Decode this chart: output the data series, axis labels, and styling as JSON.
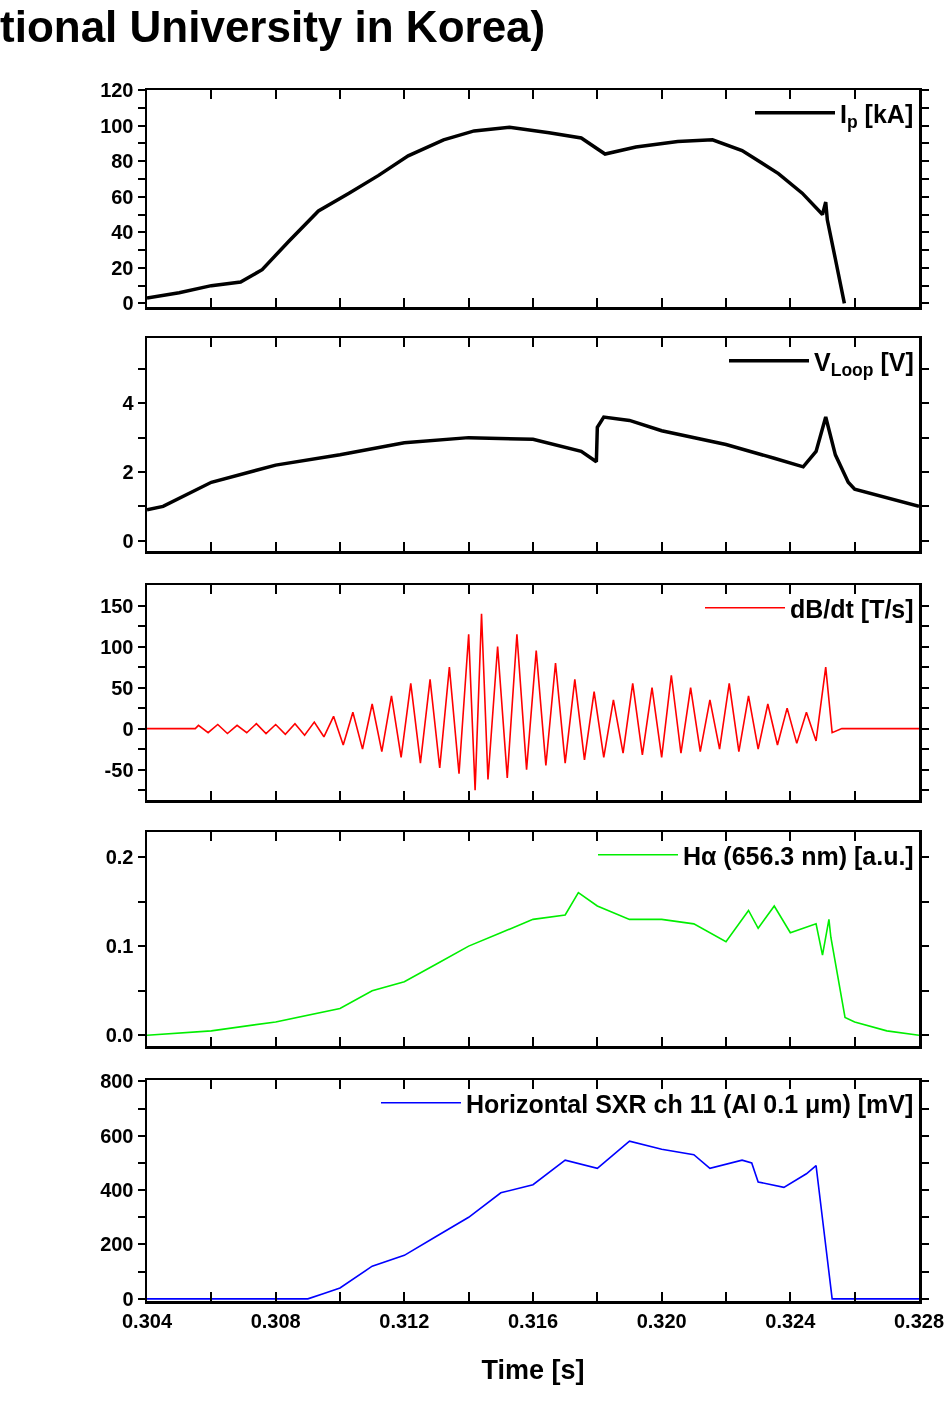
{
  "chart_data": [
    {
      "type": "line",
      "title": "tional University in Korea)",
      "xlim": [
        0.304,
        0.328
      ],
      "xticks": [
        0.304,
        {
          "value": 0.306,
          "label": null
        },
        0.308,
        {
          "value": 0.31,
          "label": null
        },
        0.312,
        {
          "value": 0.314,
          "label": null
        },
        0.316,
        {
          "value": 0.318,
          "label": null
        },
        0.32,
        {
          "value": 0.322,
          "label": null
        },
        0.324,
        {
          "value": 0.326,
          "label": null
        },
        0.328
      ],
      "ylim": [
        -2,
        120
      ],
      "yticks": [
        0,
        {
          "value": 10,
          "label": null
        },
        20,
        {
          "value": 30,
          "label": null
        },
        40,
        {
          "value": 50,
          "label": null
        },
        60,
        {
          "value": 70,
          "label": null
        },
        80,
        {
          "value": 90,
          "label": null
        },
        100,
        {
          "value": 110,
          "label": null
        },
        120
      ],
      "tick_labels": "y",
      "grid": false,
      "legend": "top right",
      "marker": "none",
      "line_style": "solid",
      "series": [
        {
          "name": "I$_{p}$ [kA]",
          "color": "#000000",
          "x": [
            0.304,
            0.305,
            0.306,
            0.30691,
            0.30758,
            0.30841,
            0.30933,
            0.31028,
            0.3112,
            0.31212,
            0.31322,
            0.31417,
            0.31527,
            0.3165,
            0.3175,
            0.31824,
            0.3192,
            0.3205,
            0.32158,
            0.3225,
            0.32363,
            0.32437,
            0.325,
            0.3251,
            0.32515,
            0.3254,
            0.32568
          ],
          "values": [
            3,
            6,
            10,
            12,
            19,
            35,
            52,
            62,
            72,
            83,
            92,
            97,
            99,
            96,
            93,
            84,
            88,
            91,
            92,
            86,
            73,
            62,
            50,
            57,
            47,
            25,
            0
          ]
        }
      ]
    },
    {
      "type": "line",
      "xlim": [
        0.304,
        0.328
      ],
      "xticks": [
        0.304,
        {
          "value": 0.306,
          "label": null
        },
        0.308,
        {
          "value": 0.31,
          "label": null
        },
        0.312,
        {
          "value": 0.314,
          "label": null
        },
        0.316,
        {
          "value": 0.318,
          "label": null
        },
        0.32,
        {
          "value": 0.322,
          "label": null
        },
        0.324,
        {
          "value": 0.326,
          "label": null
        },
        0.328
      ],
      "ylim": [
        -0.3,
        5.9
      ],
      "yticks": [
        0,
        {
          "value": 1,
          "label": null
        },
        2,
        {
          "value": 3,
          "label": null
        },
        4,
        {
          "value": 5,
          "label": null
        }
      ],
      "tick_labels": "y",
      "grid": false,
      "legend": "top right",
      "marker": "none",
      "line_style": "solid",
      "series": [
        {
          "name": "V$_{Loop}$ [V]",
          "color": "#000000",
          "x": [
            0.304,
            0.3045,
            0.306,
            0.308,
            0.31,
            0.312,
            0.314,
            0.316,
            0.3175,
            0.31797,
            0.318,
            0.3182,
            0.319,
            0.32,
            0.322,
            0.3235,
            0.3244,
            0.3248,
            0.3251,
            0.3254,
            0.3258,
            0.326,
            0.328
          ],
          "values": [
            0.9,
            1.0,
            1.7,
            2.2,
            2.5,
            2.85,
            3.0,
            2.95,
            2.6,
            2.3,
            3.3,
            3.6,
            3.5,
            3.2,
            2.8,
            2.4,
            2.15,
            2.6,
            3.6,
            2.5,
            1.7,
            1.5,
            1.0
          ]
        }
      ]
    },
    {
      "type": "line",
      "xlim": [
        0.304,
        0.328
      ],
      "xticks": [
        0.304,
        {
          "value": 0.306,
          "label": null
        },
        0.308,
        {
          "value": 0.31,
          "label": null
        },
        0.312,
        {
          "value": 0.314,
          "label": null
        },
        0.316,
        {
          "value": 0.318,
          "label": null
        },
        0.32,
        {
          "value": 0.322,
          "label": null
        },
        0.324,
        {
          "value": 0.326,
          "label": null
        },
        0.328
      ],
      "ylim": [
        -87,
        175
      ],
      "yticks": [
        {
          "value": -75,
          "label": null
        },
        -50,
        {
          "value": -25,
          "label": null
        },
        0,
        {
          "value": 25,
          "label": null
        },
        50,
        {
          "value": 75,
          "label": null
        },
        100,
        {
          "value": 125,
          "label": null
        },
        150
      ],
      "tick_labels": "y",
      "grid": false,
      "legend": "top right",
      "marker": "none",
      "line_style": "solid",
      "series": [
        {
          "name": "dB/dt [T/s]",
          "color": "#ff0000",
          "x": [
            0.304,
            0.3055,
            0.3056,
            0.3059,
            0.3062,
            0.3065,
            0.3068,
            0.3071,
            0.3074,
            0.3077,
            0.308,
            0.3083,
            0.3086,
            0.3089,
            0.3092,
            0.3095,
            0.3098,
            0.3101,
            0.3104,
            0.3107,
            0.311,
            0.3113,
            0.3116,
            0.3119,
            0.3122,
            0.3125,
            0.3128,
            0.3131,
            0.3134,
            0.3137,
            0.314,
            0.3142,
            0.3144,
            0.3146,
            0.3149,
            0.3152,
            0.3155,
            0.3158,
            0.3161,
            0.3164,
            0.3167,
            0.317,
            0.3173,
            0.3176,
            0.3179,
            0.3182,
            0.3185,
            0.3188,
            0.3191,
            0.3194,
            0.3197,
            0.32,
            0.3203,
            0.3206,
            0.3209,
            0.3212,
            0.3215,
            0.3218,
            0.3221,
            0.3224,
            0.3227,
            0.323,
            0.3233,
            0.3236,
            0.3239,
            0.3242,
            0.3245,
            0.3248,
            0.3251,
            0.3253,
            0.3256,
            0.328
          ],
          "values": [
            0,
            0,
            4,
            -5,
            5,
            -6,
            4,
            -5,
            6,
            -6,
            5,
            -7,
            6,
            -8,
            8,
            -10,
            15,
            -20,
            20,
            -25,
            30,
            -28,
            40,
            -35,
            55,
            -42,
            60,
            -48,
            75,
            -55,
            115,
            -75,
            140,
            -62,
            100,
            -60,
            115,
            -50,
            95,
            -45,
            80,
            -42,
            60,
            -38,
            45,
            -35,
            35,
            -30,
            55,
            -32,
            50,
            -35,
            65,
            -30,
            50,
            -28,
            35,
            -25,
            55,
            -28,
            40,
            -25,
            30,
            -20,
            25,
            -18,
            20,
            -15,
            75,
            -5,
            0,
            0
          ]
        }
      ]
    },
    {
      "type": "line",
      "xlim": [
        0.304,
        0.328
      ],
      "xticks": [
        0.304,
        {
          "value": 0.306,
          "label": null
        },
        0.308,
        {
          "value": 0.31,
          "label": null
        },
        0.312,
        {
          "value": 0.314,
          "label": null
        },
        0.316,
        {
          "value": 0.318,
          "label": null
        },
        0.32,
        {
          "value": 0.322,
          "label": null
        },
        0.324,
        {
          "value": 0.326,
          "label": null
        },
        0.328
      ],
      "ylim": [
        -0.012,
        0.228
      ],
      "yticks": [
        {
          "value": 0,
          "label": "0.0"
        },
        {
          "value": 0.05,
          "label": null
        },
        {
          "value": 0.1,
          "label": "0.1"
        },
        {
          "value": 0.15,
          "label": null
        },
        {
          "value": 0.2,
          "label": "0.2"
        }
      ],
      "tick_labels": "y",
      "grid": false,
      "legend": "top right",
      "marker": "none",
      "line_style": "solid",
      "series": [
        {
          "name": "Hα (656.3 nm) [a.u.]",
          "color": "#00ee00",
          "x": [
            0.304,
            0.306,
            0.308,
            0.31,
            0.311,
            0.312,
            0.313,
            0.314,
            0.315,
            0.316,
            0.317,
            0.31741,
            0.318,
            0.319,
            0.32,
            0.321,
            0.322,
            0.3227,
            0.323,
            0.3235,
            0.324,
            0.3248,
            0.325,
            0.3252,
            0.32526,
            0.3257,
            0.326,
            0.327,
            0.328
          ],
          "values": [
            0.0,
            0.005,
            0.015,
            0.03,
            0.05,
            0.06,
            0.08,
            0.1,
            0.115,
            0.13,
            0.135,
            0.16,
            0.145,
            0.13,
            0.13,
            0.125,
            0.105,
            0.14,
            0.12,
            0.145,
            0.115,
            0.125,
            0.09,
            0.13,
            0.11,
            0.02,
            0.015,
            0.005,
            0.0
          ]
        }
      ]
    },
    {
      "type": "line",
      "xlabel": "Time [s]",
      "xlim": [
        0.304,
        0.328
      ],
      "xticks": [
        0.304,
        {
          "value": 0.306,
          "label": null
        },
        0.308,
        {
          "value": 0.31,
          "label": null
        },
        0.312,
        {
          "value": 0.314,
          "label": null
        },
        0.316,
        {
          "value": 0.318,
          "label": null
        },
        {
          "value": 0.32,
          "label": "0.320"
        },
        {
          "value": 0.322,
          "label": null
        },
        0.324,
        {
          "value": 0.326,
          "label": null
        },
        0.328
      ],
      "ylim": [
        -8,
        805
      ],
      "yticks": [
        0,
        {
          "value": 100,
          "label": null
        },
        200,
        {
          "value": 300,
          "label": null
        },
        400,
        {
          "value": 500,
          "label": null
        },
        600,
        {
          "value": 700,
          "label": null
        },
        800
      ],
      "grid": false,
      "legend": "top right",
      "marker": "none",
      "line_style": "solid",
      "series": [
        {
          "name": "Horizontal SXR ch 11 (Al 0.1 μm) [mV]",
          "color": "#0000ff",
          "x": [
            0.304,
            0.309,
            0.3095,
            0.31,
            0.311,
            0.312,
            0.313,
            0.314,
            0.315,
            0.316,
            0.317,
            0.318,
            0.319,
            0.32,
            0.321,
            0.3215,
            0.3225,
            0.3228,
            0.323,
            0.3238,
            0.3245,
            0.3248,
            0.3253,
            0.328
          ],
          "values": [
            0,
            0,
            20,
            40,
            120,
            160,
            230,
            300,
            390,
            420,
            510,
            480,
            580,
            550,
            530,
            480,
            510,
            500,
            430,
            410,
            460,
            490,
            0,
            0
          ]
        }
      ]
    }
  ]
}
